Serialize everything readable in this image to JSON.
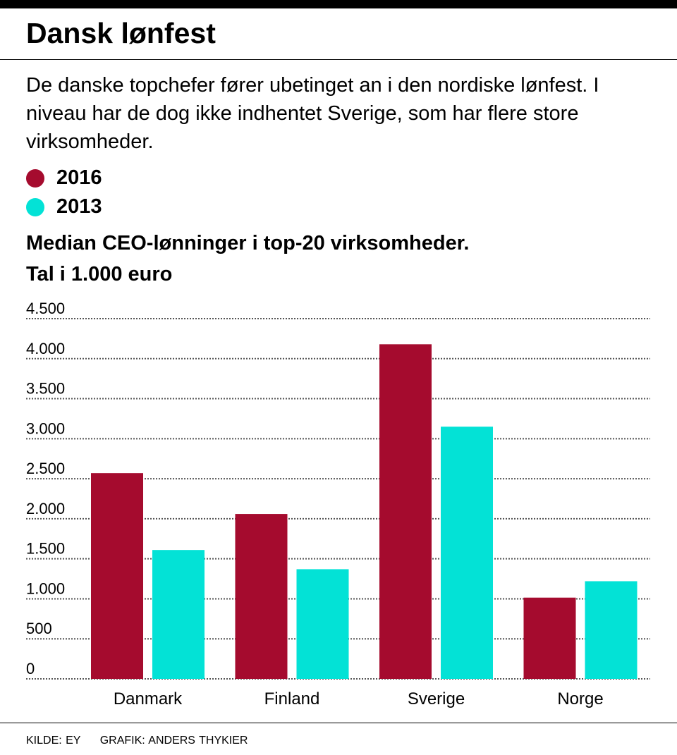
{
  "title": "Dansk lønfest",
  "subtitle": "De danske topchefer fører ubetinget an i den nordiske lønfest. I niveau har de dog ikke indhentet Sverige, som har flere store virksomheder.",
  "footer": {
    "source": "KILDE: EY",
    "credit": "GRAFIK: ANDERS THYKIER"
  },
  "colors": {
    "s2016": "#a50b2e",
    "s2013": "#03e2d6"
  },
  "chart_data": {
    "type": "bar",
    "title": "Median CEO-lønninger i top-20 virksomheder.",
    "ylabel": "Tal i 1.000 euro",
    "categories": [
      "Danmark",
      "Finland",
      "Sverige",
      "Norge"
    ],
    "series": [
      {
        "name": "2016",
        "values": [
          2570,
          2060,
          4180,
          1015
        ]
      },
      {
        "name": "2013",
        "values": [
          1610,
          1370,
          3150,
          1220
        ]
      }
    ],
    "ylim": [
      0,
      4500
    ],
    "yticks": [
      0,
      500,
      1000,
      1500,
      2000,
      2500,
      3000,
      3500,
      4000,
      4500
    ],
    "ytick_labels": [
      "0",
      "500",
      "1.000",
      "1.500",
      "2.000",
      "2.500",
      "3.000",
      "3.500",
      "4.000",
      "4.500"
    ],
    "grid": true,
    "legend": "top-left"
  }
}
